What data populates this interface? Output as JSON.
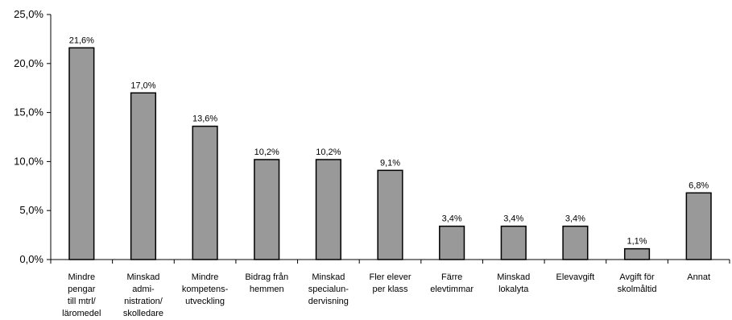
{
  "chart_data": {
    "type": "bar",
    "title": "",
    "xlabel": "",
    "ylabel": "",
    "ylim": [
      0,
      25
    ],
    "yticks": [
      "0,0%",
      "5,0%",
      "10,0%",
      "15,0%",
      "20,0%",
      "25,0%"
    ],
    "grid": false,
    "legend": "none",
    "bar_color": "#999999",
    "categories": [
      [
        "Mindre",
        "pengar",
        "till mtrl/",
        "läromedel"
      ],
      [
        "Minskad",
        "admi-",
        "nistration/",
        "skolledare"
      ],
      [
        "Mindre",
        "kompetens-",
        "utveckling"
      ],
      [
        "Bidrag från",
        "hemmen"
      ],
      [
        "Minskad",
        "specialun-",
        "dervisning"
      ],
      [
        "Fler elever",
        "per klass"
      ],
      [
        "Färre",
        "elevtimmar"
      ],
      [
        "Minskad",
        "lokalyta"
      ],
      [
        "Elevavgift"
      ],
      [
        "Avgift för",
        "skolmåltid"
      ],
      [
        "Annat"
      ]
    ],
    "values": [
      21.6,
      17.0,
      13.6,
      10.2,
      10.2,
      9.1,
      3.4,
      3.4,
      3.4,
      1.1,
      6.8
    ],
    "value_labels": [
      "21,6%",
      "17,0%",
      "13,6%",
      "10,2%",
      "10,2%",
      "9,1%",
      "3,4%",
      "3,4%",
      "3,4%",
      "1,1%",
      "6,8%"
    ]
  }
}
